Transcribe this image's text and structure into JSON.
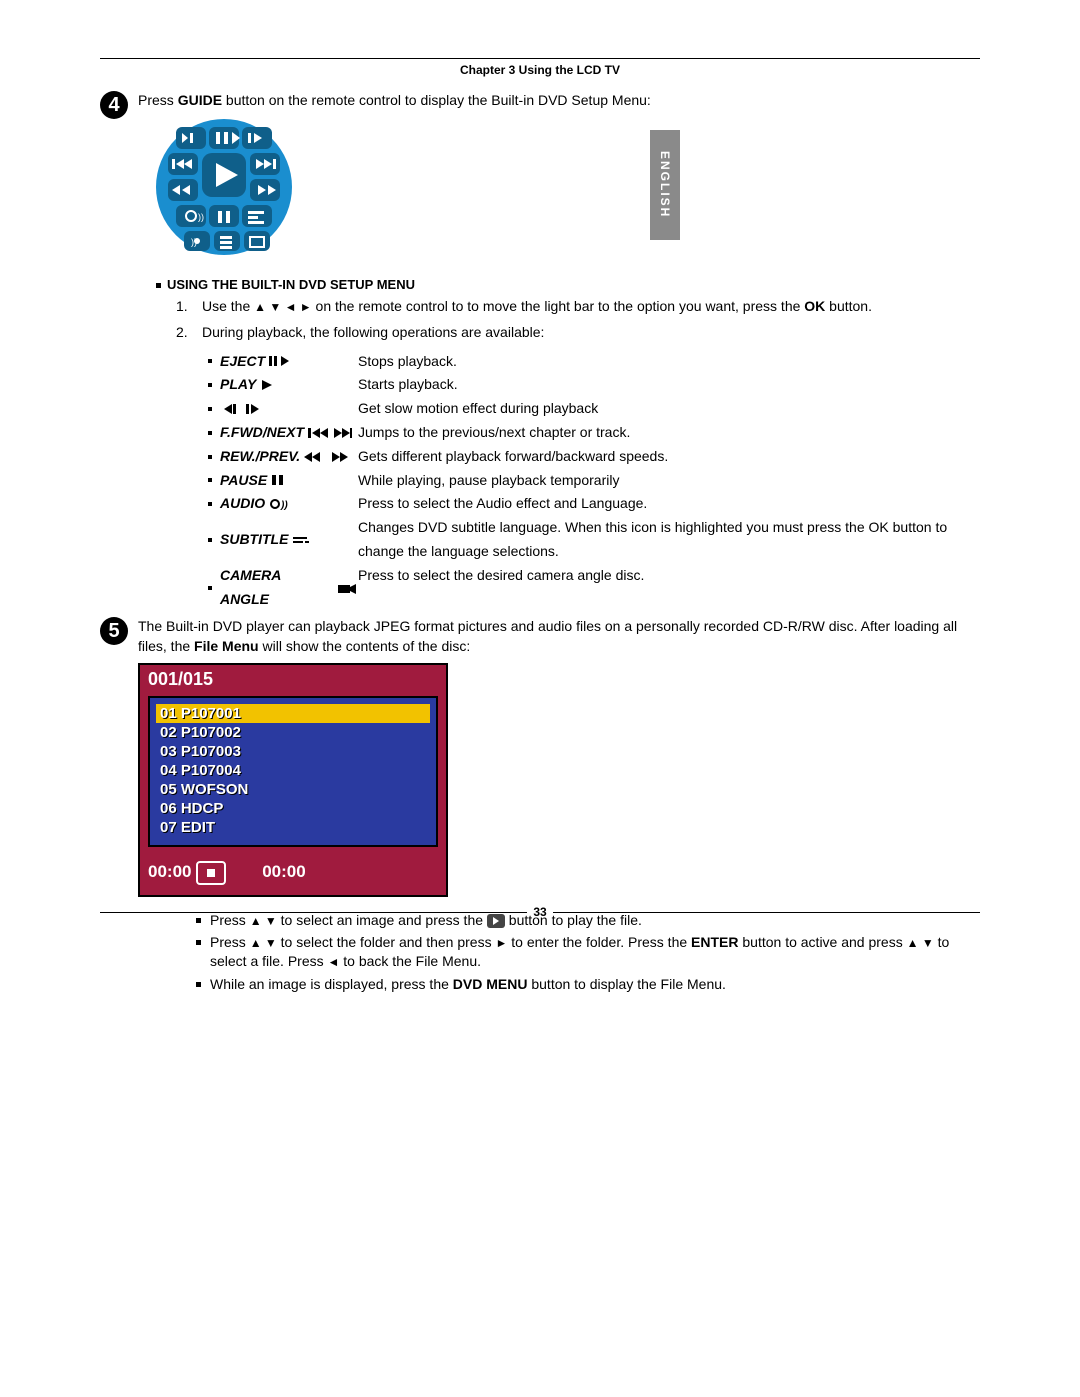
{
  "chapter_title": "Chapter 3 Using the LCD TV",
  "language_tab": "ENGLISH",
  "step4": {
    "number": "4",
    "intro_before": "Press ",
    "intro_bold": "GUIDE",
    "intro_after": " button on the remote control to display the Built-in DVD Setup Menu:",
    "subheading": "USING THE BUILT-IN DVD SETUP MENU",
    "steps": [
      {
        "n": "1.",
        "text_before": "Use the ",
        "arrows": "▲ ▼ ◄ ►",
        "text_mid": " on the remote control to to move the light bar to the option you want, press the ",
        "bold": "OK",
        "text_after": " button."
      },
      {
        "n": "2.",
        "text": "During playback, the following operations are available:"
      }
    ],
    "ops": [
      {
        "label": "EJECT",
        "desc": "Stops playback."
      },
      {
        "label": "PLAY",
        "desc": "Starts playback."
      },
      {
        "label": "",
        "desc": "Get slow motion effect during playback"
      },
      {
        "label": "F.FWD/NEXT",
        "desc": "Jumps to the previous/next chapter or track."
      },
      {
        "label": "REW./PREV.",
        "desc": "Gets  different playback forward/backward speeds."
      },
      {
        "label": "PAUSE",
        "desc": "While playing, pause playback temporarily"
      },
      {
        "label": "AUDIO",
        "desc": "Press to select the Audio effect and Language."
      },
      {
        "label": "SUBTITLE",
        "desc": "Changes DVD subtitle language. When this icon is highlighted you must press the OK button to change the language selections."
      },
      {
        "label": "CAMERA ANGLE",
        "desc": "Press to select the desired camera angle disc."
      }
    ],
    "remote_colors": {
      "fill": "#1a8ecf",
      "dark": "#0f5f8a",
      "icon": "#ffffff"
    }
  },
  "step5": {
    "number": "5",
    "intro_before": "The Built-in DVD player can playback JPEG format pictures and audio files on a personally recorded CD-R/RW disc. After loading all files, the ",
    "intro_bold": "File Menu",
    "intro_after": " will show the contents of the disc:",
    "file_menu": {
      "counter": "001/015",
      "items": [
        "01 P107001",
        "02 P107002",
        "03 P107003",
        "04 P107004",
        "05 WOFSON",
        "06 HDCP",
        "07 EDIT"
      ],
      "selected_index": 0,
      "time_left": "00:00",
      "time_right": "00:00",
      "colors": {
        "frame": "#a01b3e",
        "list_bg": "#2a3aa0",
        "highlight": "#f2c200",
        "text": "#ffffff",
        "shadow": "#000000"
      }
    },
    "bullets": [
      {
        "parts": [
          {
            "t": "Press "
          },
          {
            "arrows": "▲ ▼"
          },
          {
            "t": " to select an image and press the "
          },
          {
            "play_icon": true
          },
          {
            "t": " button to play the file."
          }
        ]
      },
      {
        "parts": [
          {
            "t": "Press "
          },
          {
            "arrows": "▲ ▼"
          },
          {
            "t": " to select the folder and then press "
          },
          {
            "arrows": "►"
          },
          {
            "t": " to enter the folder. Press the "
          },
          {
            "b": "ENTER"
          },
          {
            "t": " button to active and press "
          },
          {
            "arrows": "▲ ▼"
          },
          {
            "t": " to select a file. Press "
          },
          {
            "arrows": "◄"
          },
          {
            "t": " to back the File Menu."
          }
        ]
      },
      {
        "parts": [
          {
            "t": "While an image is displayed, press the "
          },
          {
            "b": "DVD MENU"
          },
          {
            "t": " button to display the File Menu."
          }
        ]
      }
    ]
  },
  "page_number": "33"
}
